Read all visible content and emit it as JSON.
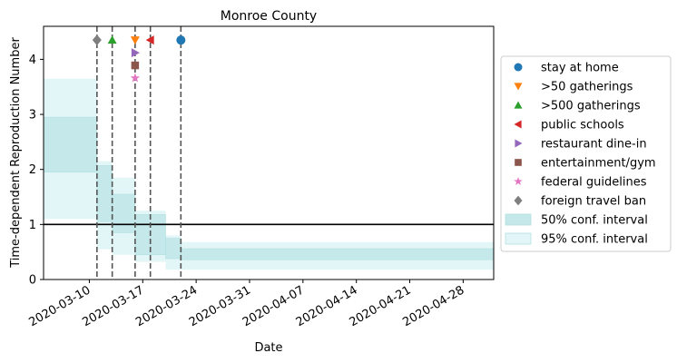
{
  "chart_data": {
    "type": "line",
    "title": "Monroe County",
    "xlabel": "Date",
    "ylabel": "Time-dependent Reproduction Number",
    "x_range": [
      "2020-03-04",
      "2020-05-02"
    ],
    "ylim": [
      0,
      4.6
    ],
    "yticks": [
      0,
      1,
      2,
      3,
      4
    ],
    "xticks": [
      "2020-03-10",
      "2020-03-17",
      "2020-03-24",
      "2020-03-31",
      "2020-04-07",
      "2020-04-14",
      "2020-04-21",
      "2020-04-28"
    ],
    "reference_line": 1,
    "grid": false,
    "legend_position": "right",
    "intervals": [
      {
        "start": "2020-03-04",
        "end": "2020-03-11",
        "ci50": [
          1.95,
          2.95
        ],
        "ci95": [
          1.1,
          3.65
        ]
      },
      {
        "start": "2020-03-11",
        "end": "2020-03-13",
        "ci50": [
          1.05,
          2.07
        ],
        "ci95": [
          0.55,
          2.15
        ]
      },
      {
        "start": "2020-03-13",
        "end": "2020-03-16",
        "ci50": [
          0.85,
          1.55
        ],
        "ci95": [
          0.45,
          1.85
        ]
      },
      {
        "start": "2020-03-16",
        "end": "2020-03-20",
        "ci50": [
          0.45,
          1.18
        ],
        "ci95": [
          0.32,
          1.25
        ]
      },
      {
        "start": "2020-03-20",
        "end": "2020-03-22",
        "ci50": [
          0.38,
          0.75
        ],
        "ci95": [
          0.18,
          0.8
        ]
      },
      {
        "start": "2020-03-22",
        "end": "2020-05-02",
        "ci50": [
          0.36,
          0.56
        ],
        "ci95": [
          0.18,
          0.68
        ]
      }
    ],
    "interventions": [
      {
        "name": "stay at home",
        "date": "2020-03-22",
        "y": 4.35,
        "marker": "circle",
        "color": "#1f77b4"
      },
      {
        "name": ">50 gatherings",
        "date": "2020-03-16",
        "y": 4.35,
        "marker": "triangle-down",
        "color": "#ff7f0e"
      },
      {
        "name": ">500 gatherings",
        "date": "2020-03-13",
        "y": 4.35,
        "marker": "triangle-up",
        "color": "#2ca02c"
      },
      {
        "name": "public schools",
        "date": "2020-03-18",
        "y": 4.35,
        "marker": "triangle-left",
        "color": "#d62728"
      },
      {
        "name": "restaurant dine-in",
        "date": "2020-03-16",
        "y": 4.12,
        "marker": "triangle-right",
        "color": "#9467bd"
      },
      {
        "name": "entertainment/gym",
        "date": "2020-03-16",
        "y": 3.89,
        "marker": "square",
        "color": "#8c564b"
      },
      {
        "name": "federal guidelines",
        "date": "2020-03-16",
        "y": 3.66,
        "marker": "star",
        "color": "#e377c2"
      },
      {
        "name": "foreign travel ban",
        "date": "2020-03-11",
        "y": 4.35,
        "marker": "diamond",
        "color": "#7f7f7f"
      }
    ],
    "legend_bands": [
      {
        "name": "50% conf. interval",
        "color": "#c5e9ea"
      },
      {
        "name": "95% conf. interval",
        "color": "#e3f6f7"
      }
    ]
  }
}
